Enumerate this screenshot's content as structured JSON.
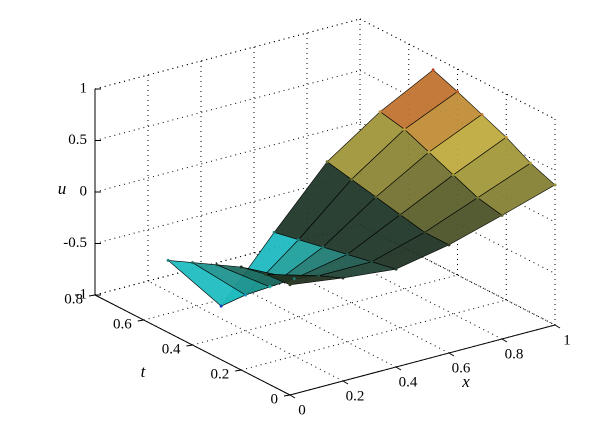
{
  "chart_data": {
    "type": "surface",
    "xlabel": "x",
    "ylabel": "t",
    "zlabel": "u",
    "x": [
      0,
      0.2,
      0.4,
      0.6,
      0.8,
      1
    ],
    "y": [
      0,
      0.1,
      0.2,
      0.3,
      0.4,
      0.5
    ],
    "z": [
      [
        0.07,
        0.0,
        -0.05,
        0.05,
        0.2,
        0.36
      ],
      [
        0.05,
        -0.1,
        -0.1,
        0.05,
        0.25,
        0.45
      ],
      [
        0.0,
        -0.25,
        -0.15,
        0.1,
        0.35,
        0.58
      ],
      [
        -0.1,
        -0.45,
        -0.2,
        0.15,
        0.45,
        0.68
      ],
      [
        -0.2,
        -0.65,
        -0.25,
        0.2,
        0.55,
        0.78
      ],
      [
        -0.3,
        -0.88,
        -0.3,
        0.25,
        0.6,
        0.87
      ]
    ],
    "colormap": [
      "#1010c0",
      "#20c0c0",
      "#203020",
      "#c0b040",
      "#c01818"
    ],
    "xlim": [
      0,
      1
    ],
    "xticks": [
      0,
      0.2,
      0.4,
      0.6,
      0.8,
      1
    ],
    "ylim": [
      0,
      0.8
    ],
    "yticks": [
      0,
      0.2,
      0.4,
      0.6,
      0.8
    ],
    "zlim": [
      -1,
      1
    ],
    "zticks": [
      -1,
      -0.5,
      0,
      0.5,
      1
    ],
    "grid": true
  }
}
